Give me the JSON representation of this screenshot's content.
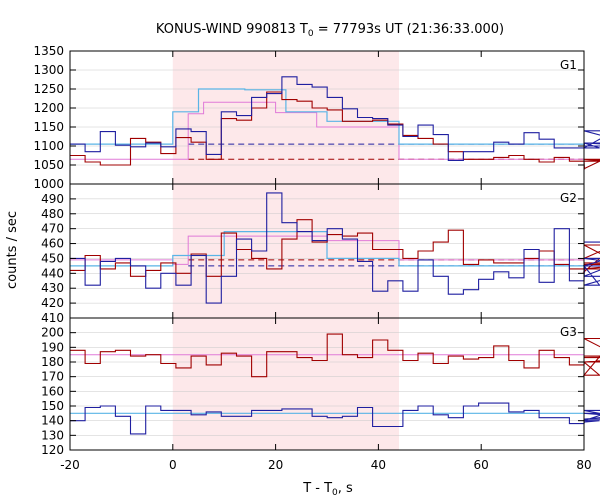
{
  "chart_data": {
    "type": "line",
    "title": "KONUS-WIND 990813 T",
    "title_sub": "0",
    "title_rest": " = 77793s UT (21:36:33.000)",
    "xlabel_main": "T - T",
    "xlabel_sub": "0",
    "xlabel_rest": ", s",
    "ylabel": "counts / sec",
    "xlim": [
      -20,
      80
    ],
    "x_ticks": [
      "-20",
      "0",
      "20",
      "40",
      "60",
      "80"
    ],
    "x_tick_values": [
      -20,
      0,
      20,
      40,
      60,
      80
    ],
    "highlight_interval": [
      0,
      44
    ],
    "colors": {
      "highlight": "#fde8ea",
      "red_series": "#a00000",
      "blue_series": "#1f1fa0",
      "pink_fit": "#e07ad8",
      "cyan_fit": "#5ab4e6",
      "frame": "#000000",
      "grid": "#c8c8c8"
    },
    "panels": [
      {
        "name": "G1",
        "ylim": [
          1000,
          1350
        ],
        "y_ticks": [
          "1000",
          "1050",
          "1100",
          "1150",
          "1200",
          "1250",
          "1300",
          "1350"
        ],
        "y_tick_values": [
          1000,
          1050,
          1100,
          1150,
          1200,
          1250,
          1300,
          1350
        ],
        "red_bins": {
          "x0": -20,
          "dx": 2.944,
          "values": [
            1075,
            1058,
            1050,
            1050,
            1120,
            1110,
            1080,
            1122,
            1110,
            1065,
            1172,
            1168,
            1200,
            1242,
            1222,
            1218,
            1200,
            1195,
            1165,
            1165,
            1168,
            1158,
            1128,
            1120,
            1105,
            1085,
            1065,
            1065,
            1070,
            1075,
            1065,
            1058,
            1070,
            1060,
            1040,
            1060,
            1065,
            1060,
            1065,
            1060
          ]
        },
        "blue_bins": {
          "x0": -20,
          "dx": 2.944,
          "values": [
            1105,
            1085,
            1138,
            1102,
            1098,
            1108,
            1098,
            1145,
            1138,
            1078,
            1190,
            1180,
            1228,
            1238,
            1282,
            1262,
            1255,
            1228,
            1198,
            1175,
            1172,
            1155,
            1125,
            1155,
            1130,
            1062,
            1085,
            1085,
            1110,
            1105,
            1135,
            1118,
            1095,
            1095,
            1108,
            1095,
            1140,
            1108,
            1100,
            1100
          ]
        },
        "red_fit_steps": [
          [
            -20,
            1065
          ],
          [
            3,
            1065
          ],
          [
            3,
            1185
          ],
          [
            6,
            1185
          ],
          [
            6,
            1215
          ],
          [
            20,
            1215
          ],
          [
            20,
            1188
          ],
          [
            28,
            1188
          ],
          [
            28,
            1150
          ],
          [
            44,
            1150
          ],
          [
            44,
            1065
          ],
          [
            80,
            1065
          ]
        ],
        "blue_fit_steps": [
          [
            -20,
            1105
          ],
          [
            0,
            1105
          ],
          [
            0,
            1190
          ],
          [
            5,
            1190
          ],
          [
            5,
            1250
          ],
          [
            14,
            1250
          ],
          [
            14,
            1248
          ],
          [
            22,
            1248
          ],
          [
            22,
            1190
          ],
          [
            30,
            1190
          ],
          [
            30,
            1165
          ],
          [
            44,
            1165
          ],
          [
            44,
            1105
          ],
          [
            80,
            1105
          ]
        ],
        "red_background": 1065,
        "blue_background": 1105
      },
      {
        "name": "G2",
        "ylim": [
          410,
          500
        ],
        "y_ticks": [
          "410",
          "420",
          "430",
          "440",
          "450",
          "460",
          "470",
          "480",
          "490"
        ],
        "y_tick_values": [
          410,
          420,
          430,
          440,
          450,
          460,
          470,
          480,
          490
        ],
        "red_bins": {
          "x0": -20,
          "dx": 2.944,
          "values": [
            442,
            452,
            443,
            447,
            438,
            442,
            447,
            440,
            453,
            438,
            467,
            456,
            450,
            443,
            463,
            476,
            461,
            466,
            465,
            467,
            456,
            456,
            450,
            455,
            461,
            469,
            446,
            449,
            447,
            447,
            450,
            455,
            446,
            443,
            441,
            450,
            459,
            443,
            447,
            446
          ]
        },
        "blue_bins": {
          "x0": -20,
          "dx": 2.944,
          "values": [
            450,
            432,
            448,
            450,
            445,
            430,
            440,
            432,
            452,
            420,
            438,
            463,
            455,
            494,
            474,
            468,
            462,
            470,
            463,
            448,
            428,
            435,
            428,
            449,
            438,
            426,
            429,
            436,
            441,
            437,
            456,
            434,
            470,
            435,
            445,
            432,
            438,
            450,
            445,
            461
          ]
        },
        "red_fit_steps": [
          [
            -20,
            449
          ],
          [
            0,
            449
          ],
          [
            0,
            446
          ],
          [
            3,
            446
          ],
          [
            3,
            465
          ],
          [
            15,
            465
          ],
          [
            15,
            465
          ],
          [
            30,
            465
          ],
          [
            30,
            462
          ],
          [
            44,
            462
          ],
          [
            44,
            449
          ],
          [
            80,
            449
          ]
        ],
        "blue_fit_steps": [
          [
            -20,
            445
          ],
          [
            0,
            445
          ],
          [
            0,
            452
          ],
          [
            10,
            452
          ],
          [
            10,
            468
          ],
          [
            30,
            468
          ],
          [
            30,
            450
          ],
          [
            44,
            450
          ],
          [
            44,
            445
          ],
          [
            80,
            445
          ]
        ],
        "red_background": 449,
        "blue_background": 445
      },
      {
        "name": "G3",
        "ylim": [
          120,
          210
        ],
        "y_ticks": [
          "120",
          "130",
          "140",
          "150",
          "160",
          "170",
          "180",
          "190",
          "200"
        ],
        "y_tick_values": [
          120,
          130,
          140,
          150,
          160,
          170,
          180,
          190,
          200
        ],
        "red_bins": {
          "x0": -20,
          "dx": 2.944,
          "values": [
            188,
            179,
            187,
            188,
            184,
            185,
            179,
            176,
            184,
            178,
            186,
            184,
            170,
            187,
            187,
            183,
            181,
            199,
            185,
            183,
            195,
            188,
            181,
            186,
            179,
            184,
            182,
            183,
            191,
            181,
            176,
            188,
            183,
            178,
            180,
            171,
            196,
            180,
            183,
            184
          ]
        },
        "blue_bins": {
          "x0": -20,
          "dx": 2.944,
          "values": [
            140,
            149,
            150,
            143,
            131,
            150,
            147,
            147,
            144,
            146,
            143,
            143,
            147,
            147,
            148,
            148,
            143,
            142,
            143,
            149,
            136,
            136,
            147,
            150,
            144,
            142,
            150,
            152,
            152,
            146,
            147,
            142,
            142,
            138,
            139,
            140,
            147,
            141,
            145,
            141
          ]
        },
        "red_fit_steps": [
          [
            -20,
            185
          ],
          [
            80,
            185
          ]
        ],
        "blue_fit_steps": [
          [
            -20,
            145
          ],
          [
            80,
            145
          ]
        ],
        "red_background": 185,
        "blue_background": 145
      }
    ]
  }
}
